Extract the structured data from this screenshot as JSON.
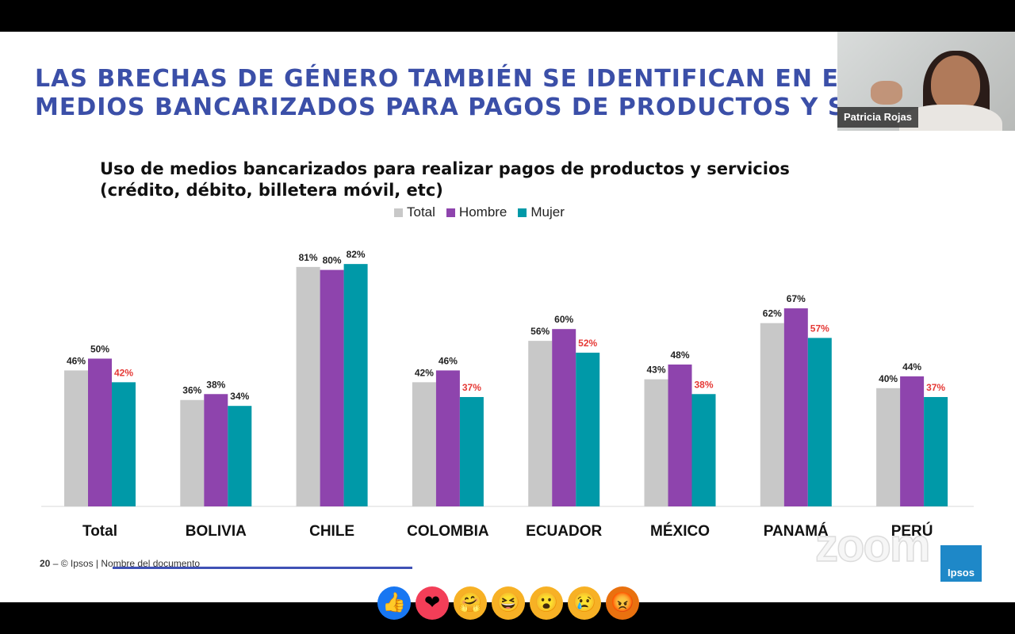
{
  "slide": {
    "heading_line1": "LAS BRECHAS DE GÉNERO TAMBIÉN SE IDENTIFICAN EN EL",
    "heading_line2": "MEDIOS BANCARIZADOS PARA PAGOS DE PRODUCTOS Y S",
    "footer_page": "20",
    "footer_text": "– © Ipsos | Nombre del documento",
    "logo_text": "Ipsos",
    "watermark": "zoom"
  },
  "video": {
    "participant_name": "Patricia Rojas"
  },
  "reactions": [
    {
      "name": "like",
      "glyph": "👍",
      "color": "#1877f2"
    },
    {
      "name": "love",
      "glyph": "❤",
      "color": "#f33e58"
    },
    {
      "name": "care",
      "glyph": "🤗",
      "color": "#f7b125"
    },
    {
      "name": "haha",
      "glyph": "😆",
      "color": "#f7b125"
    },
    {
      "name": "wow",
      "glyph": "😮",
      "color": "#f7b125"
    },
    {
      "name": "sad",
      "glyph": "😢",
      "color": "#f7b125"
    },
    {
      "name": "angry",
      "glyph": "😡",
      "color": "#e9710f"
    }
  ],
  "chart_data": {
    "type": "bar",
    "title": "Uso de medios bancarizados para realizar pagos de productos y servicios",
    "subtitle": "(crédito, débito, billetera móvil, etc)",
    "categories": [
      "Total",
      "BOLIVIA",
      "CHILE",
      "COLOMBIA",
      "ECUADOR",
      "MÉXICO",
      "PANAMÁ",
      "PERÚ"
    ],
    "series": [
      {
        "name": "Total",
        "color": "#c8c8c8",
        "label_color": "#222222",
        "values": [
          46,
          36,
          81,
          42,
          56,
          43,
          62,
          40
        ]
      },
      {
        "name": "Hombre",
        "color": "#8e44ad",
        "label_color": "#222222",
        "values": [
          50,
          38,
          80,
          46,
          60,
          48,
          67,
          44
        ]
      },
      {
        "name": "Mujer",
        "color": "#0099a8",
        "label_color": "#e53935",
        "values": [
          42,
          34,
          82,
          37,
          52,
          38,
          57,
          37
        ]
      }
    ],
    "black_labels_mujer": [
      "BOLIVIA",
      "CHILE"
    ],
    "value_suffix": "%",
    "ylim": [
      0,
      90
    ],
    "grid": false,
    "legend": "top-center"
  }
}
